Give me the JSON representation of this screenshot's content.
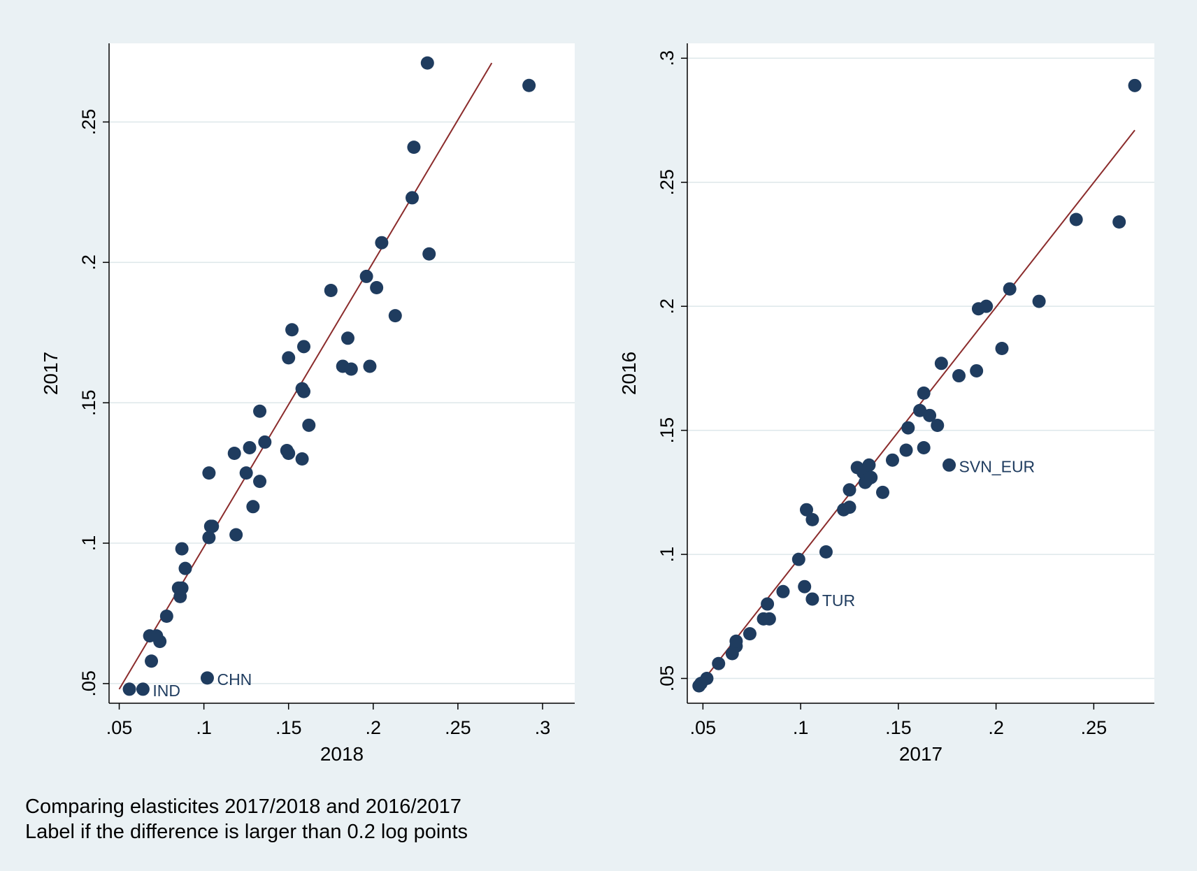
{
  "colors": {
    "background": "#eaf1f4",
    "plot_area": "#ffffff",
    "gridline": "#dde7ea",
    "marker": "#1f3c5f",
    "fit_line": "#8b2c2c",
    "label_text": "#1f3c5f"
  },
  "note": [
    "Comparing elasticites 2017/2018 and 2016/2017",
    "Label if the difference is larger than 0.2 log points"
  ],
  "chart_data": [
    {
      "type": "scatter",
      "title": "",
      "xlabel": "2018",
      "ylabel": "2017",
      "xlim": [
        0.044,
        0.319
      ],
      "ylim": [
        0.043,
        0.278
      ],
      "xticks": [
        0.05,
        0.1,
        0.15,
        0.2,
        0.25,
        0.3
      ],
      "xtick_labels": [
        ".05",
        ".1",
        ".15",
        ".2",
        ".25",
        ".3"
      ],
      "yticks": [
        0.05,
        0.1,
        0.15,
        0.2,
        0.25
      ],
      "ytick_labels": [
        ".05",
        ".1",
        ".15",
        ".2",
        ".25"
      ],
      "grid": true,
      "fit_line": [
        [
          0.05,
          0.048
        ],
        [
          0.27,
          0.271
        ]
      ],
      "labels": [
        {
          "x": 0.064,
          "y": 0.048,
          "text": "IND"
        },
        {
          "x": 0.102,
          "y": 0.052,
          "text": "CHN"
        }
      ],
      "points": [
        [
          0.056,
          0.048
        ],
        [
          0.064,
          0.048
        ],
        [
          0.102,
          0.052
        ],
        [
          0.069,
          0.058
        ],
        [
          0.074,
          0.065
        ],
        [
          0.068,
          0.067
        ],
        [
          0.072,
          0.067
        ],
        [
          0.078,
          0.074
        ],
        [
          0.086,
          0.081
        ],
        [
          0.085,
          0.084
        ],
        [
          0.087,
          0.084
        ],
        [
          0.089,
          0.091
        ],
        [
          0.087,
          0.098
        ],
        [
          0.103,
          0.102
        ],
        [
          0.104,
          0.106
        ],
        [
          0.105,
          0.106
        ],
        [
          0.103,
          0.125
        ],
        [
          0.119,
          0.103
        ],
        [
          0.129,
          0.113
        ],
        [
          0.133,
          0.122
        ],
        [
          0.125,
          0.125
        ],
        [
          0.118,
          0.132
        ],
        [
          0.127,
          0.134
        ],
        [
          0.136,
          0.136
        ],
        [
          0.133,
          0.147
        ],
        [
          0.149,
          0.133
        ],
        [
          0.15,
          0.132
        ],
        [
          0.158,
          0.13
        ],
        [
          0.162,
          0.142
        ],
        [
          0.158,
          0.155
        ],
        [
          0.159,
          0.154
        ],
        [
          0.15,
          0.166
        ],
        [
          0.159,
          0.17
        ],
        [
          0.152,
          0.176
        ],
        [
          0.175,
          0.19
        ],
        [
          0.182,
          0.163
        ],
        [
          0.187,
          0.162
        ],
        [
          0.185,
          0.173
        ],
        [
          0.198,
          0.163
        ],
        [
          0.196,
          0.195
        ],
        [
          0.202,
          0.191
        ],
        [
          0.205,
          0.207
        ],
        [
          0.213,
          0.181
        ],
        [
          0.223,
          0.223
        ],
        [
          0.224,
          0.241
        ],
        [
          0.233,
          0.203
        ],
        [
          0.232,
          0.271
        ],
        [
          0.292,
          0.263
        ]
      ]
    },
    {
      "type": "scatter",
      "title": "",
      "xlabel": "2017",
      "ylabel": "2016",
      "xlim": [
        0.042,
        0.281
      ],
      "ylim": [
        0.04,
        0.306
      ],
      "xticks": [
        0.05,
        0.1,
        0.15,
        0.2,
        0.25
      ],
      "xtick_labels": [
        ".05",
        ".1",
        ".15",
        ".2",
        ".25"
      ],
      "yticks": [
        0.05,
        0.1,
        0.15,
        0.2,
        0.25,
        0.3
      ],
      "ytick_labels": [
        ".05",
        ".1",
        ".15",
        ".2",
        ".25",
        ".3"
      ],
      "grid": true,
      "fit_line": [
        [
          0.048,
          0.047
        ],
        [
          0.271,
          0.271
        ]
      ],
      "labels": [
        {
          "x": 0.106,
          "y": 0.082,
          "text": "TUR"
        },
        {
          "x": 0.176,
          "y": 0.136,
          "text": "SVN_EUR"
        }
      ],
      "points": [
        [
          0.048,
          0.047
        ],
        [
          0.049,
          0.048
        ],
        [
          0.052,
          0.05
        ],
        [
          0.058,
          0.056
        ],
        [
          0.065,
          0.06
        ],
        [
          0.067,
          0.063
        ],
        [
          0.067,
          0.065
        ],
        [
          0.074,
          0.068
        ],
        [
          0.081,
          0.074
        ],
        [
          0.084,
          0.074
        ],
        [
          0.083,
          0.08
        ],
        [
          0.091,
          0.085
        ],
        [
          0.102,
          0.087
        ],
        [
          0.106,
          0.082
        ],
        [
          0.099,
          0.098
        ],
        [
          0.113,
          0.101
        ],
        [
          0.103,
          0.118
        ],
        [
          0.106,
          0.114
        ],
        [
          0.122,
          0.118
        ],
        [
          0.125,
          0.119
        ],
        [
          0.125,
          0.126
        ],
        [
          0.129,
          0.135
        ],
        [
          0.132,
          0.133
        ],
        [
          0.133,
          0.129
        ],
        [
          0.135,
          0.136
        ],
        [
          0.134,
          0.13
        ],
        [
          0.136,
          0.131
        ],
        [
          0.142,
          0.125
        ],
        [
          0.147,
          0.138
        ],
        [
          0.154,
          0.142
        ],
        [
          0.155,
          0.151
        ],
        [
          0.161,
          0.158
        ],
        [
          0.163,
          0.143
        ],
        [
          0.163,
          0.165
        ],
        [
          0.166,
          0.156
        ],
        [
          0.17,
          0.152
        ],
        [
          0.172,
          0.177
        ],
        [
          0.176,
          0.136
        ],
        [
          0.181,
          0.172
        ],
        [
          0.19,
          0.174
        ],
        [
          0.191,
          0.199
        ],
        [
          0.195,
          0.2
        ],
        [
          0.203,
          0.183
        ],
        [
          0.207,
          0.207
        ],
        [
          0.222,
          0.202
        ],
        [
          0.241,
          0.235
        ],
        [
          0.263,
          0.234
        ],
        [
          0.271,
          0.289
        ]
      ]
    }
  ]
}
